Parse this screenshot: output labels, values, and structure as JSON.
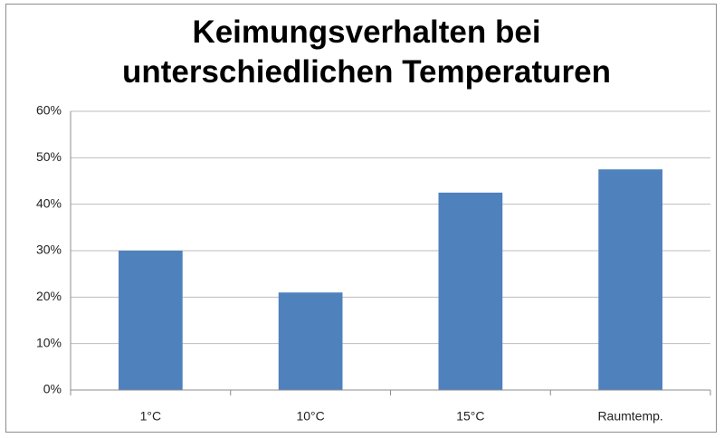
{
  "chart_data": {
    "type": "bar",
    "title": "Keimungsverhalten bei unterschiedlichen Temperaturen",
    "categories": [
      "1°C",
      "10°C",
      "15°C",
      "Raumtemp."
    ],
    "values": [
      30,
      21,
      42.5,
      47.5
    ],
    "color": "#4f81bd",
    "ylim": [
      0,
      60
    ],
    "yticks": [
      {
        "value": 0,
        "label": "0%"
      },
      {
        "value": 10,
        "label": "10%"
      },
      {
        "value": 20,
        "label": "20%"
      },
      {
        "value": 30,
        "label": "30%"
      },
      {
        "value": 40,
        "label": "40%"
      },
      {
        "value": 50,
        "label": "50%"
      },
      {
        "value": 60,
        "label": "60%"
      }
    ],
    "grid": true
  }
}
